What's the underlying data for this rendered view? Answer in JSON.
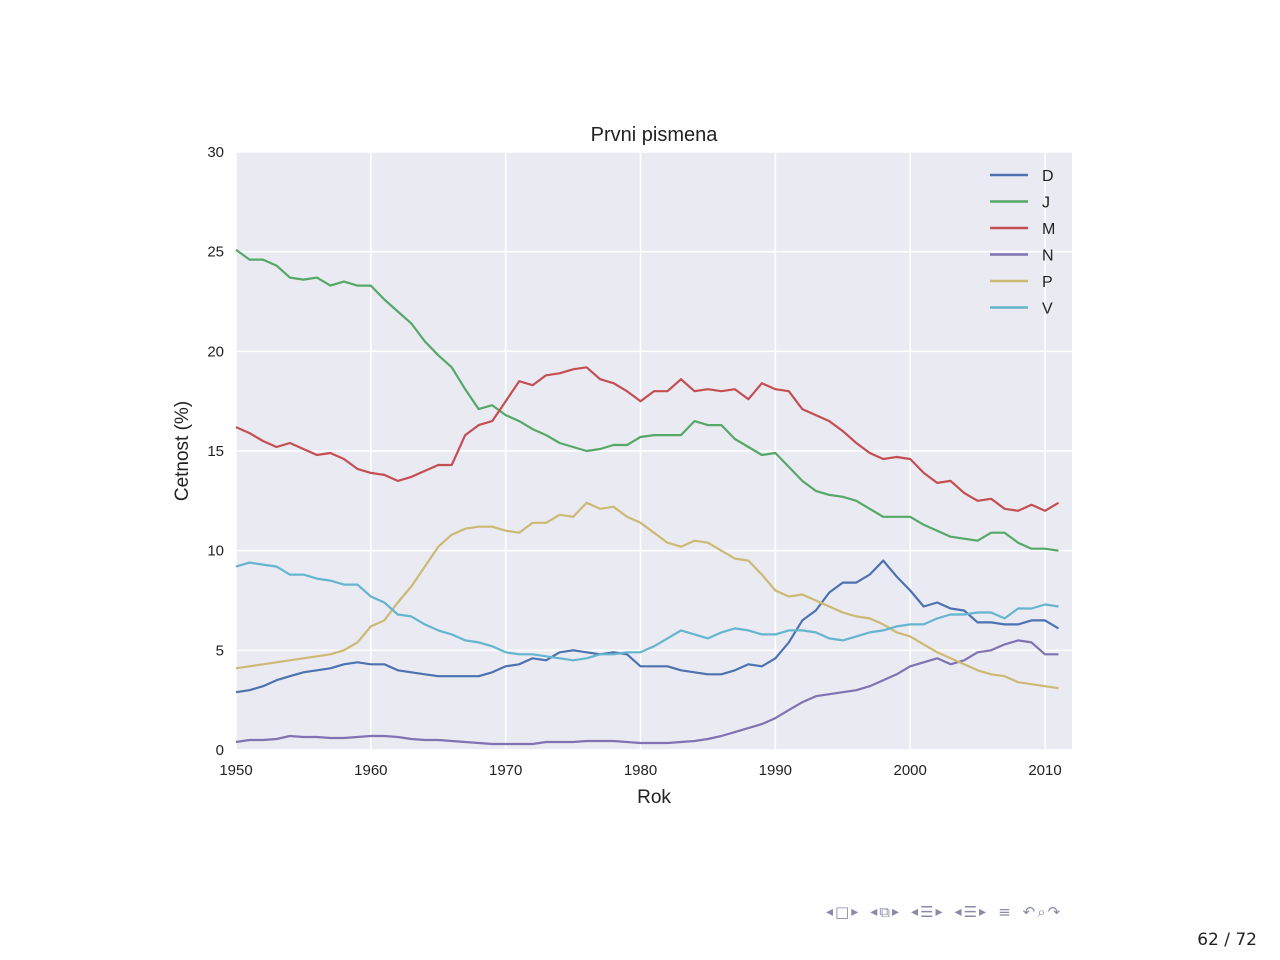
{
  "chart_data": {
    "type": "line",
    "title": "Prvni pismena",
    "xlabel": "Rok",
    "ylabel": "Cetnost (%)",
    "xlim": [
      1950,
      2012
    ],
    "ylim": [
      0,
      30
    ],
    "xticks": [
      1950,
      1960,
      1970,
      1980,
      1990,
      2000,
      2010
    ],
    "yticks": [
      0,
      5,
      10,
      15,
      20,
      25,
      30
    ],
    "grid": true,
    "legend_position": "top-right",
    "x": [
      1950,
      1951,
      1952,
      1953,
      1954,
      1955,
      1956,
      1957,
      1958,
      1959,
      1960,
      1961,
      1962,
      1963,
      1964,
      1965,
      1966,
      1967,
      1968,
      1969,
      1970,
      1971,
      1972,
      1973,
      1974,
      1975,
      1976,
      1977,
      1978,
      1979,
      1980,
      1981,
      1982,
      1983,
      1984,
      1985,
      1986,
      1987,
      1988,
      1989,
      1990,
      1991,
      1992,
      1993,
      1994,
      1995,
      1996,
      1997,
      1998,
      1999,
      2000,
      2001,
      2002,
      2003,
      2004,
      2005,
      2006,
      2007,
      2008,
      2009,
      2010,
      2011
    ],
    "series": [
      {
        "name": "D",
        "color": "#4c72b0",
        "values": [
          2.9,
          3.0,
          3.2,
          3.5,
          3.7,
          3.9,
          4.0,
          4.1,
          4.3,
          4.4,
          4.3,
          4.3,
          4.0,
          3.9,
          3.8,
          3.7,
          3.7,
          3.7,
          3.7,
          3.9,
          4.2,
          4.3,
          4.6,
          4.5,
          4.9,
          5.0,
          4.9,
          4.8,
          4.9,
          4.8,
          4.2,
          4.2,
          4.2,
          4.0,
          3.9,
          3.8,
          3.8,
          4.0,
          4.3,
          4.2,
          4.6,
          5.4,
          6.5,
          7.0,
          7.9,
          8.4,
          8.4,
          8.8,
          9.5,
          8.7,
          8.0,
          7.2,
          7.4,
          7.1,
          7.0,
          6.4,
          6.4,
          6.3,
          6.3,
          6.5,
          6.5,
          6.1
        ]
      },
      {
        "name": "J",
        "color": "#55a868",
        "values": [
          25.1,
          24.6,
          24.6,
          24.3,
          23.7,
          23.6,
          23.7,
          23.3,
          23.5,
          23.3,
          23.3,
          22.6,
          22.0,
          21.4,
          20.5,
          19.8,
          19.2,
          18.1,
          17.1,
          17.3,
          16.8,
          16.5,
          16.1,
          15.8,
          15.4,
          15.2,
          15.0,
          15.1,
          15.3,
          15.3,
          15.7,
          15.8,
          15.8,
          15.8,
          16.5,
          16.3,
          16.3,
          15.6,
          15.2,
          14.8,
          14.9,
          14.2,
          13.5,
          13.0,
          12.8,
          12.7,
          12.5,
          12.1,
          11.7,
          11.7,
          11.7,
          11.3,
          11.0,
          10.7,
          10.6,
          10.5,
          10.9,
          10.9,
          10.4,
          10.1,
          10.1,
          10.0
        ]
      },
      {
        "name": "M",
        "color": "#c44e52",
        "values": [
          16.2,
          15.9,
          15.5,
          15.2,
          15.4,
          15.1,
          14.8,
          14.9,
          14.6,
          14.1,
          13.9,
          13.8,
          13.5,
          13.7,
          14.0,
          14.3,
          14.3,
          15.8,
          16.3,
          16.5,
          17.5,
          18.5,
          18.3,
          18.8,
          18.9,
          19.1,
          19.2,
          18.6,
          18.4,
          18.0,
          17.5,
          18.0,
          18.0,
          18.6,
          18.0,
          18.1,
          18.0,
          18.1,
          17.6,
          18.4,
          18.1,
          18.0,
          17.1,
          16.8,
          16.5,
          16.0,
          15.4,
          14.9,
          14.6,
          14.7,
          14.6,
          13.9,
          13.4,
          13.5,
          12.9,
          12.5,
          12.6,
          12.1,
          12.0,
          12.3,
          12.0,
          12.4
        ]
      },
      {
        "name": "N",
        "color": "#8172b2",
        "values": [
          0.4,
          0.5,
          0.5,
          0.55,
          0.7,
          0.65,
          0.65,
          0.6,
          0.6,
          0.65,
          0.7,
          0.7,
          0.65,
          0.55,
          0.5,
          0.5,
          0.45,
          0.4,
          0.35,
          0.3,
          0.3,
          0.3,
          0.3,
          0.4,
          0.4,
          0.4,
          0.45,
          0.45,
          0.45,
          0.4,
          0.35,
          0.35,
          0.35,
          0.4,
          0.45,
          0.55,
          0.7,
          0.9,
          1.1,
          1.3,
          1.6,
          2.0,
          2.4,
          2.7,
          2.8,
          2.9,
          3.0,
          3.2,
          3.5,
          3.8,
          4.2,
          4.4,
          4.6,
          4.3,
          4.5,
          4.9,
          5.0,
          5.3,
          5.5,
          5.4,
          4.8,
          4.8
        ]
      },
      {
        "name": "P",
        "color": "#ccb974",
        "values": [
          4.1,
          4.2,
          4.3,
          4.4,
          4.5,
          4.6,
          4.7,
          4.8,
          5.0,
          5.4,
          6.2,
          6.5,
          7.4,
          8.2,
          9.2,
          10.2,
          10.8,
          11.1,
          11.2,
          11.2,
          11.0,
          10.9,
          11.4,
          11.4,
          11.8,
          11.7,
          12.4,
          12.1,
          12.2,
          11.7,
          11.4,
          10.9,
          10.4,
          10.2,
          10.5,
          10.4,
          10.0,
          9.6,
          9.5,
          8.8,
          8.0,
          7.7,
          7.8,
          7.5,
          7.2,
          6.9,
          6.7,
          6.6,
          6.3,
          5.9,
          5.7,
          5.3,
          4.9,
          4.6,
          4.3,
          4.0,
          3.8,
          3.7,
          3.4,
          3.3,
          3.2,
          3.1
        ]
      },
      {
        "name": "V",
        "color": "#64b5cd",
        "values": [
          9.2,
          9.4,
          9.3,
          9.2,
          8.8,
          8.8,
          8.6,
          8.5,
          8.3,
          8.3,
          7.7,
          7.4,
          6.8,
          6.7,
          6.3,
          6.0,
          5.8,
          5.5,
          5.4,
          5.2,
          4.9,
          4.8,
          4.8,
          4.7,
          4.6,
          4.5,
          4.6,
          4.8,
          4.8,
          4.9,
          4.9,
          5.2,
          5.6,
          6.0,
          5.8,
          5.6,
          5.9,
          6.1,
          6.0,
          5.8,
          5.8,
          6.0,
          6.0,
          5.9,
          5.6,
          5.5,
          5.7,
          5.9,
          6.0,
          6.2,
          6.3,
          6.3,
          6.6,
          6.8,
          6.8,
          6.9,
          6.9,
          6.6,
          7.1,
          7.1,
          7.3,
          7.2
        ]
      }
    ]
  },
  "style": {
    "plot_background": "#eaeaf2",
    "grid_color": "#ffffff"
  },
  "navigation": {
    "page_indicator": "62 / 72",
    "icons": [
      "nav-left-arrow",
      "frame-icon",
      "nav-right-arrow",
      "nav-left-arrow",
      "subsection-icon",
      "nav-right-arrow",
      "nav-left-arrow",
      "section-icon",
      "nav-right-arrow",
      "nav-left-arrow",
      "document-icon",
      "nav-right-arrow",
      "align-icon",
      "back-icon",
      "search-icon",
      "forward-icon"
    ]
  }
}
